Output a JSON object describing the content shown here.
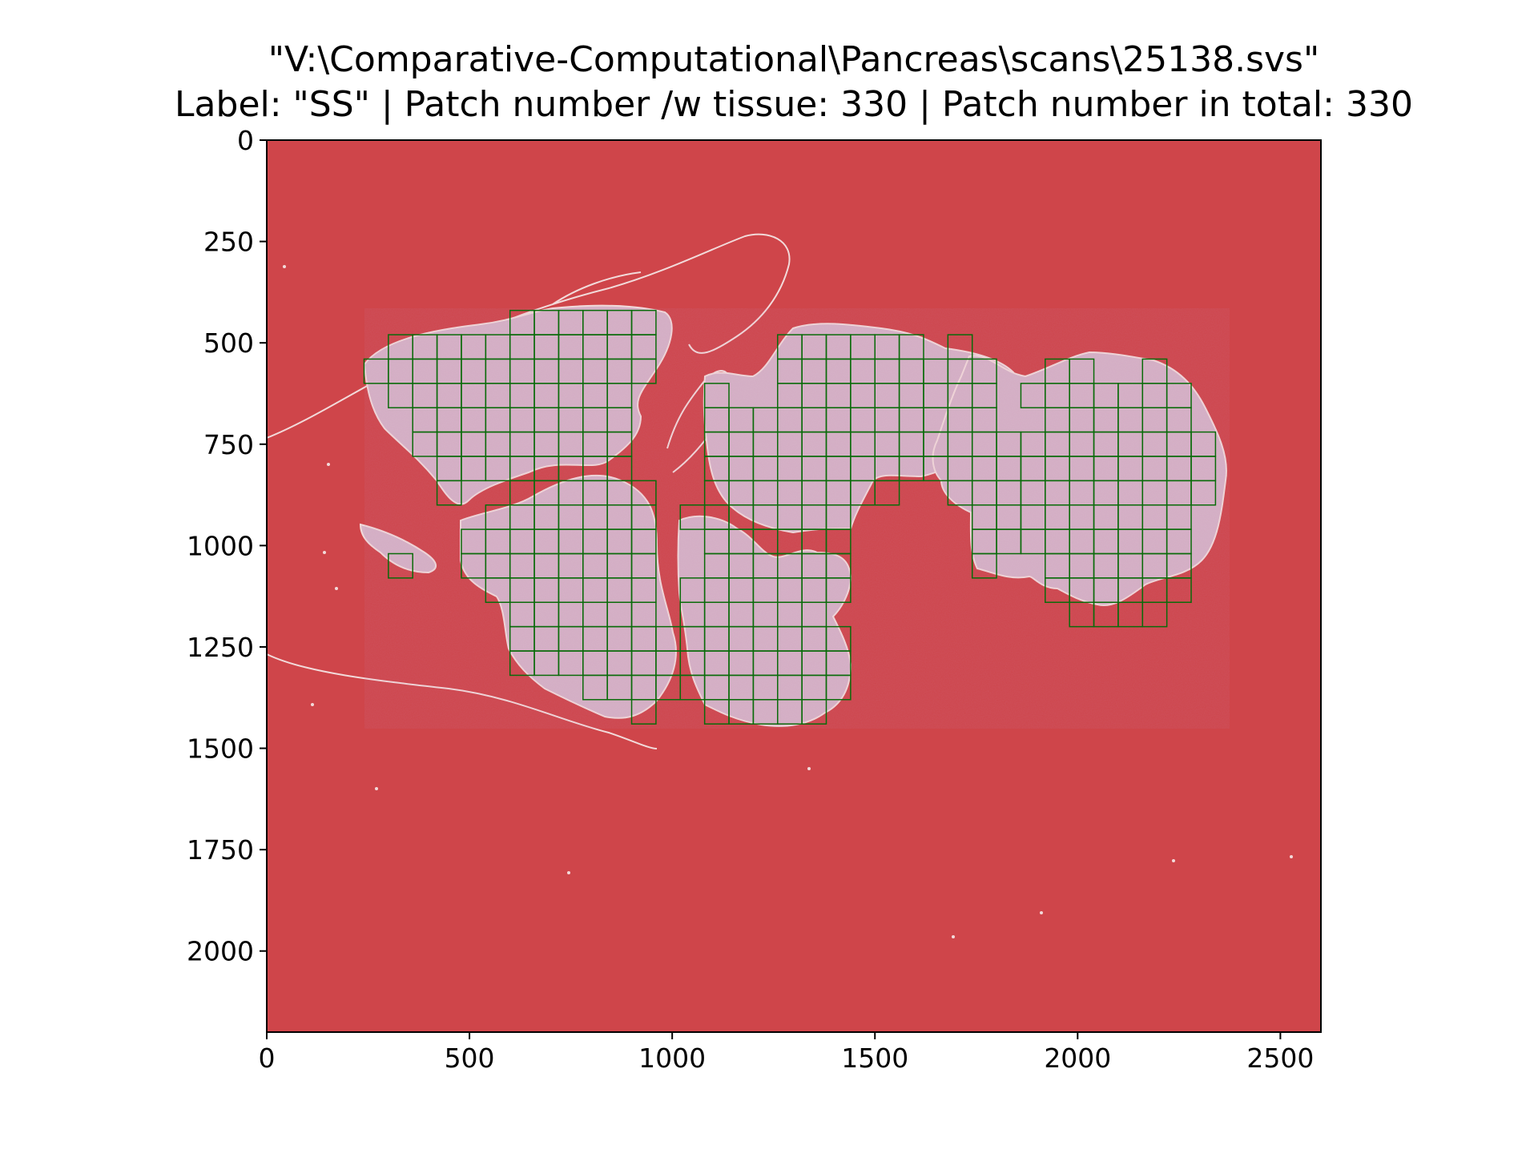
{
  "title": {
    "line1": "\"V:\\Comparative-Computational\\Pancreas\\scans\\25138.svs\"",
    "line2": "Label: \"SS\" | Patch number /w tissue: 330 | Patch number in total: 330"
  },
  "axes": {
    "x_ticks": [
      "0",
      "500",
      "1000",
      "1500",
      "2000",
      "2500"
    ],
    "y_ticks": [
      "0",
      "250",
      "500",
      "750",
      "1000",
      "1250",
      "1500",
      "1750",
      "2000"
    ],
    "xlim": [
      0,
      2600
    ],
    "ylim": [
      2200,
      0
    ]
  },
  "colors": {
    "background": "#cf454a",
    "tissue": "#d6b3c7",
    "grid": "#0a6b0a",
    "contour": "#f2dada"
  },
  "patch_size": 60
}
